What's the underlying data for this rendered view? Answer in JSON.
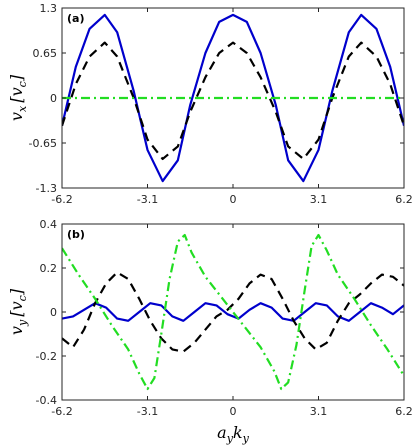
{
  "chart_data": [
    {
      "type": "line",
      "panel_label": "(a)",
      "ylabel": "v_x [v_c]",
      "xlim": [
        -6.2,
        6.2
      ],
      "ylim": [
        -1.3,
        1.3
      ],
      "xticks": [
        "-6.2",
        "-3.1",
        "0",
        "3.1",
        "6.2"
      ],
      "yticks": [
        "1.3",
        "0.65",
        "0",
        "-0.65",
        "-1.3"
      ],
      "xtick_values": [
        -6.2,
        -3.1,
        0,
        3.1,
        6.2
      ],
      "ytick_values": [
        1.3,
        0.65,
        0,
        -0.65,
        -1.3
      ],
      "series": [
        {
          "color": "#0000cc",
          "style": "solid",
          "x": [
            -6.2,
            -5.7,
            -5.2,
            -4.65,
            -4.2,
            -3.6,
            -3.1,
            -2.55,
            -2.0,
            -1.55,
            -1.0,
            -0.5,
            0,
            0.5,
            1.0,
            1.55,
            2.0,
            2.55,
            3.1,
            3.6,
            4.2,
            4.65,
            5.2,
            5.7,
            6.2
          ],
          "y": [
            -0.4,
            0.45,
            1.0,
            1.2,
            0.95,
            0.1,
            -0.75,
            -1.2,
            -0.9,
            -0.1,
            0.65,
            1.1,
            1.2,
            1.1,
            0.65,
            -0.1,
            -0.9,
            -1.2,
            -0.75,
            0.1,
            0.95,
            1.2,
            1.0,
            0.45,
            -0.4
          ]
        },
        {
          "color": "#000000",
          "style": "dashed",
          "x": [
            -6.2,
            -5.7,
            -5.2,
            -4.65,
            -4.2,
            -3.6,
            -3.1,
            -2.55,
            -2.0,
            -1.55,
            -1.0,
            -0.5,
            0,
            0.5,
            1.0,
            1.55,
            2.0,
            2.55,
            3.1,
            3.6,
            4.2,
            4.65,
            5.2,
            5.7,
            6.2
          ],
          "y": [
            -0.4,
            0.2,
            0.6,
            0.8,
            0.6,
            0.0,
            -0.6,
            -0.88,
            -0.7,
            -0.2,
            0.3,
            0.65,
            0.8,
            0.65,
            0.3,
            -0.2,
            -0.7,
            -0.88,
            -0.6,
            0.0,
            0.6,
            0.8,
            0.6,
            0.2,
            -0.4
          ]
        },
        {
          "color": "#22dd22",
          "style": "dashdot",
          "x": [
            -6.2,
            6.2
          ],
          "y": [
            0,
            0
          ]
        }
      ]
    },
    {
      "type": "line",
      "panel_label": "(b)",
      "xlabel": "a_y k_y",
      "ylabel": "v_y [v_c]",
      "xlim": [
        -6.2,
        6.2
      ],
      "ylim": [
        -0.4,
        0.4
      ],
      "xticks": [
        "-6.2",
        "-3.1",
        "0",
        "3.1",
        "6.2"
      ],
      "yticks": [
        "0.4",
        "0.2",
        "0",
        "-0.2",
        "-0.4"
      ],
      "xtick_values": [
        -6.2,
        -3.1,
        0,
        3.1,
        6.2
      ],
      "ytick_values": [
        0.4,
        0.2,
        0,
        -0.2,
        -0.4
      ],
      "series": [
        {
          "color": "#0000cc",
          "style": "solid",
          "x": [
            -6.2,
            -5.8,
            -5.4,
            -5.0,
            -4.6,
            -4.2,
            -3.8,
            -3.4,
            -3.0,
            -2.6,
            -2.2,
            -1.8,
            -1.4,
            -1.0,
            -0.6,
            -0.2,
            0.2,
            0.6,
            1.0,
            1.4,
            1.8,
            2.2,
            2.6,
            3.0,
            3.4,
            3.8,
            4.2,
            4.6,
            5.0,
            5.4,
            5.8,
            6.2
          ],
          "y": [
            -0.03,
            -0.02,
            0.01,
            0.04,
            0.02,
            -0.03,
            -0.04,
            0.0,
            0.04,
            0.03,
            -0.02,
            -0.04,
            0.0,
            0.04,
            0.03,
            -0.01,
            -0.03,
            0.01,
            0.04,
            0.02,
            -0.03,
            -0.04,
            0.0,
            0.04,
            0.03,
            -0.02,
            -0.04,
            0.0,
            0.04,
            0.02,
            -0.01,
            0.03
          ]
        },
        {
          "color": "#000000",
          "style": "dashed",
          "x": [
            -6.2,
            -5.8,
            -5.4,
            -5.0,
            -4.6,
            -4.2,
            -3.8,
            -3.4,
            -3.0,
            -2.6,
            -2.2,
            -1.8,
            -1.4,
            -1.0,
            -0.6,
            -0.2,
            0.2,
            0.6,
            1.0,
            1.4,
            1.8,
            2.2,
            2.6,
            3.0,
            3.4,
            3.8,
            4.2,
            4.6,
            5.0,
            5.4,
            5.8,
            6.2
          ],
          "y": [
            -0.12,
            -0.16,
            -0.08,
            0.04,
            0.13,
            0.18,
            0.15,
            0.06,
            -0.04,
            -0.12,
            -0.17,
            -0.18,
            -0.14,
            -0.08,
            -0.02,
            0.01,
            0.06,
            0.13,
            0.17,
            0.15,
            0.06,
            -0.04,
            -0.12,
            -0.17,
            -0.14,
            -0.04,
            0.04,
            0.08,
            0.13,
            0.17,
            0.16,
            0.12
          ]
        },
        {
          "color": "#22dd22",
          "style": "dashdot",
          "x": [
            -6.2,
            -5.6,
            -5.0,
            -4.4,
            -3.8,
            -3.4,
            -3.1,
            -2.85,
            -2.6,
            -2.3,
            -2.0,
            -1.75,
            -1.5,
            -1.0,
            -0.5,
            0,
            0.5,
            1.0,
            1.5,
            1.75,
            2.0,
            2.3,
            2.6,
            2.85,
            3.1,
            3.4,
            3.8,
            4.4,
            5.0,
            5.6,
            6.2
          ],
          "y": [
            0.29,
            0.17,
            0.06,
            -0.06,
            -0.17,
            -0.28,
            -0.35,
            -0.3,
            -0.1,
            0.15,
            0.32,
            0.35,
            0.27,
            0.16,
            0.08,
            0.0,
            -0.08,
            -0.16,
            -0.27,
            -0.35,
            -0.32,
            -0.15,
            0.1,
            0.3,
            0.35,
            0.28,
            0.17,
            0.06,
            -0.06,
            -0.17,
            -0.29
          ]
        }
      ]
    }
  ]
}
